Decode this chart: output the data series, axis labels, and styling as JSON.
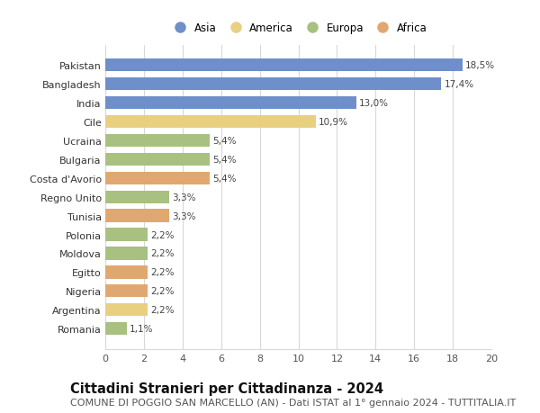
{
  "countries": [
    "Pakistan",
    "Bangladesh",
    "India",
    "Cile",
    "Ucraina",
    "Bulgaria",
    "Costa d'Avorio",
    "Regno Unito",
    "Tunisia",
    "Polonia",
    "Moldova",
    "Egitto",
    "Nigeria",
    "Argentina",
    "Romania"
  ],
  "values": [
    18.5,
    17.4,
    13.0,
    10.9,
    5.4,
    5.4,
    5.4,
    3.3,
    3.3,
    2.2,
    2.2,
    2.2,
    2.2,
    2.2,
    1.1
  ],
  "labels": [
    "18,5%",
    "17,4%",
    "13,0%",
    "10,9%",
    "5,4%",
    "5,4%",
    "5,4%",
    "3,3%",
    "3,3%",
    "2,2%",
    "2,2%",
    "2,2%",
    "2,2%",
    "2,2%",
    "1,1%"
  ],
  "continents": [
    "Asia",
    "Asia",
    "Asia",
    "America",
    "Europa",
    "Europa",
    "Africa",
    "Europa",
    "Africa",
    "Europa",
    "Europa",
    "Africa",
    "Africa",
    "America",
    "Europa"
  ],
  "colors": {
    "Asia": "#6e8fc9",
    "America": "#e8d080",
    "Europa": "#a8c080",
    "Africa": "#e0a870"
  },
  "legend_order": [
    "Asia",
    "America",
    "Europa",
    "Africa"
  ],
  "xlim": [
    0,
    20
  ],
  "xticks": [
    0,
    2,
    4,
    6,
    8,
    10,
    12,
    14,
    16,
    18,
    20
  ],
  "title": "Cittadini Stranieri per Cittadinanza - 2024",
  "subtitle": "COMUNE DI POGGIO SAN MARCELLO (AN) - Dati ISTAT al 1° gennaio 2024 - TUTTITALIA.IT",
  "title_fontsize": 10.5,
  "subtitle_fontsize": 8,
  "background_color": "#ffffff",
  "grid_color": "#d8d8d8",
  "bar_height": 0.68
}
